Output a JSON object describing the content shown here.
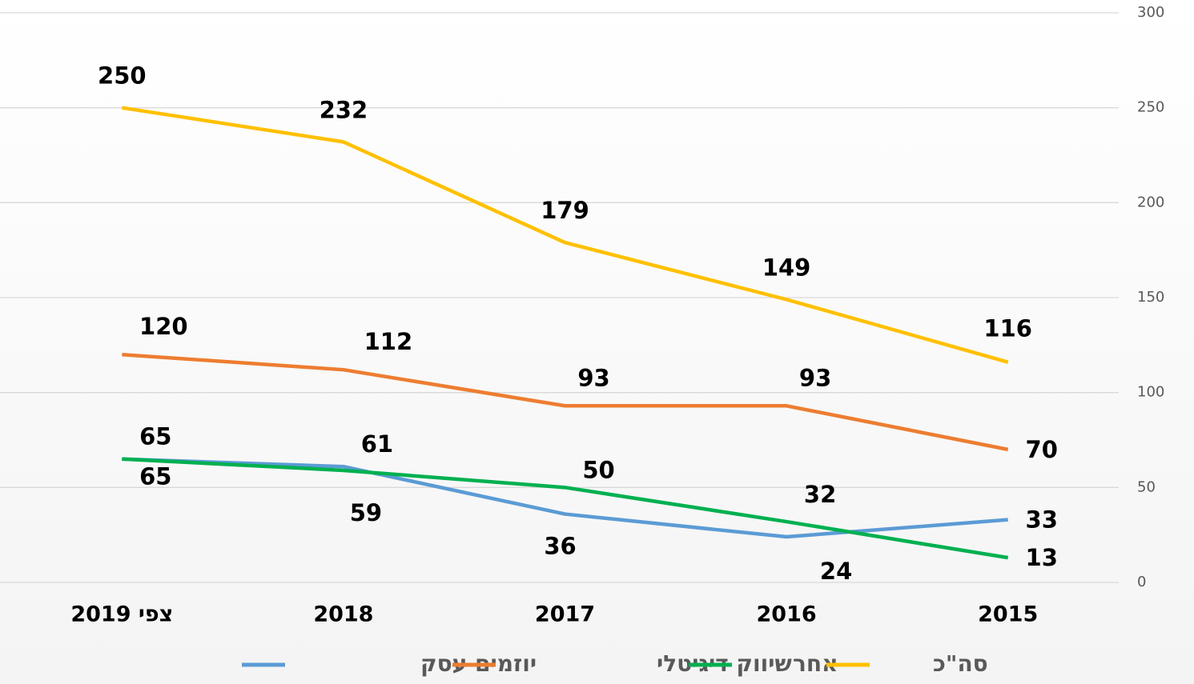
{
  "chart_data": {
    "type": "line",
    "categories": [
      "צפי 2019",
      "2018",
      "2017",
      "2016",
      "2015"
    ],
    "series": [
      {
        "name": "יוזמים עסק",
        "color": "#5b9bd5",
        "values": [
          65,
          61,
          36,
          24,
          33
        ]
      },
      {
        "name": "שיווק דיגיטלי",
        "color": "#ed7d31",
        "values": [
          120,
          112,
          93,
          93,
          70
        ]
      },
      {
        "name": "אחר",
        "color": "#00b050",
        "values": [
          65,
          59,
          50,
          32,
          13
        ]
      },
      {
        "name": "סה\"כ",
        "color": "#ffc000",
        "values": [
          250,
          232,
          179,
          149,
          116
        ]
      }
    ],
    "ylim": [
      0,
      300
    ],
    "yticks": [
      0,
      50,
      100,
      150,
      200,
      250,
      300
    ],
    "grid": true,
    "legend": "bottom"
  }
}
